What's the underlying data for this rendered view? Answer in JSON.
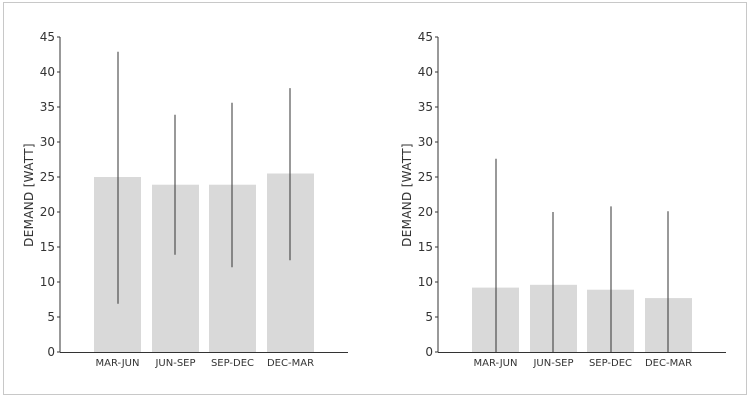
{
  "chart_data": [
    {
      "type": "bar",
      "categories": [
        "MAR-JUN",
        "JUN-SEP",
        "SEP-DEC",
        "DEC-MAR"
      ],
      "values": [
        25.0,
        23.9,
        23.9,
        25.5
      ],
      "error_min": [
        6.9,
        13.9,
        12.1,
        13.1
      ],
      "error_max": [
        42.9,
        33.9,
        35.6,
        37.7
      ],
      "ylabel": "DEMAND [WATT]",
      "xlabel": "",
      "ylim": [
        0,
        45
      ],
      "yticks": [
        "0",
        "5",
        "10",
        "15",
        "20",
        "25",
        "30",
        "35",
        "40",
        "45"
      ],
      "bar_color": "#d9d9d9",
      "line_color": "#333333",
      "grid": false
    },
    {
      "type": "bar",
      "categories": [
        "MAR-JUN",
        "JUN-SEP",
        "SEP-DEC",
        "DEC-MAR"
      ],
      "values": [
        9.2,
        9.6,
        8.9,
        7.7
      ],
      "error_min": [
        0,
        0,
        0,
        0
      ],
      "error_max": [
        27.6,
        20.0,
        20.8,
        20.1
      ],
      "ylabel": "DEMAND [WATT]",
      "xlabel": "",
      "ylim": [
        0,
        45
      ],
      "yticks": [
        "0",
        "5",
        "10",
        "15",
        "20",
        "25",
        "30",
        "35",
        "40",
        "45"
      ],
      "bar_color": "#d9d9d9",
      "line_color": "#333333",
      "grid": false
    }
  ]
}
